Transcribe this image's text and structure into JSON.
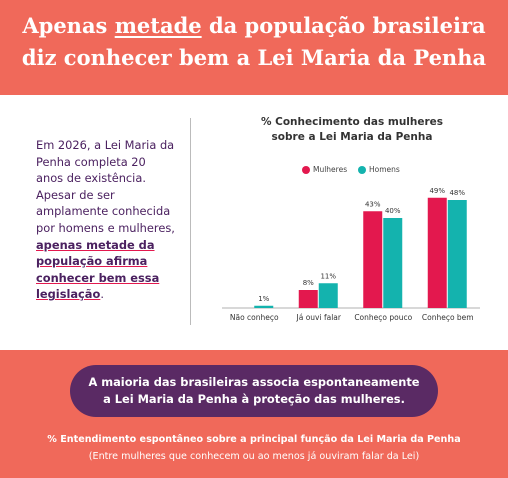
{
  "header": {
    "title_parts": [
      "Apenas ",
      "metade",
      " da população brasileira diz conhecer bem a Lei Maria da Penha"
    ]
  },
  "intro": {
    "text": "Em 2026, a Lei Maria da Penha completa 20 anos de existência. Apesar de ser amplamente conhecida por homens e mulheres, ",
    "highlight": "apenas metade da população afirma conhecer bem essa legislação",
    "end": "."
  },
  "chart_data": {
    "type": "bar",
    "title": [
      "% Conhecimento das mulheres",
      "sobre a Lei Maria da Penha"
    ],
    "categories": [
      "Não conheço",
      "Já ouvi falar",
      "Conheço pouco",
      "Conheço bem"
    ],
    "series": [
      {
        "name": "Mulheres",
        "color": "#e3184e",
        "values": [
          null,
          8,
          43,
          49
        ],
        "value_labels": [
          null,
          "8%",
          "43%",
          "49%"
        ]
      },
      {
        "name": "Homens",
        "color": "#14b3ae",
        "values": [
          1,
          11,
          40,
          48
        ],
        "value_labels": [
          "1%",
          "11%",
          "40%",
          "48%"
        ]
      }
    ],
    "legend": "top"
  },
  "footer": {
    "banner": [
      "A maioria das brasileiras associa espontaneamente",
      "a Lei Maria da Penha à proteção das mulheres."
    ],
    "caption": "% Entendimento espontâneo sobre a principal função da Lei Maria da Penha",
    "note": "(Entre mulheres que conhecem ou ao menos já ouviram falar da Lei)"
  }
}
